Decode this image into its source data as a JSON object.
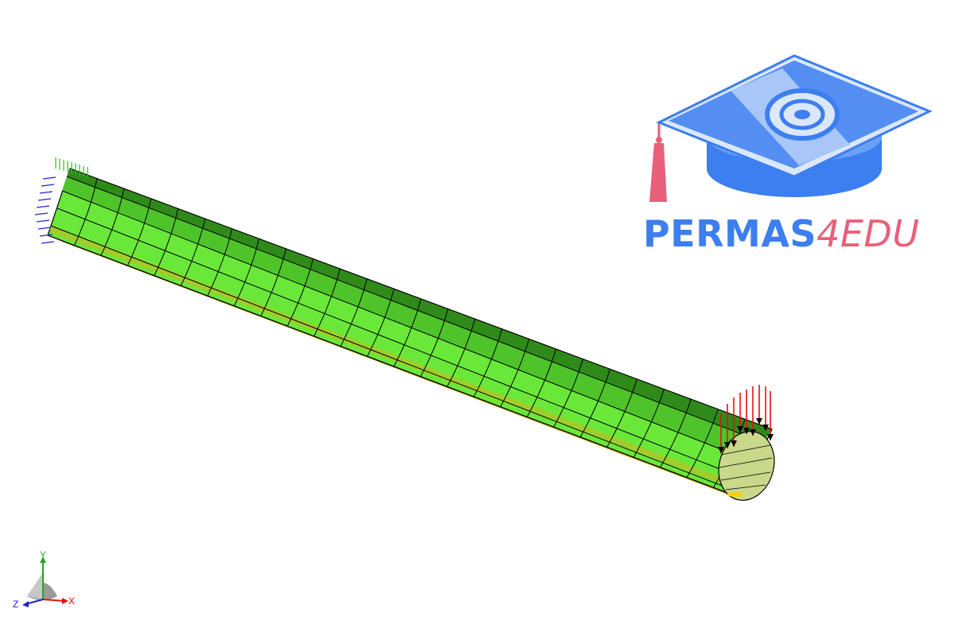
{
  "logo": {
    "brand_main": "PERMAS",
    "brand_accent": "4EDU",
    "color_main": "#3d7ef0",
    "color_accent": "#e8607a"
  },
  "triad": {
    "x_label": "X",
    "y_label": "Y",
    "z_label": "Z"
  },
  "model": {
    "shell_color": "#6ee83a",
    "inner_color": "#c8a000",
    "support_color_vertical": "#22c022",
    "support_color_lateral": "#2222cc",
    "load_color": "#e81010"
  }
}
